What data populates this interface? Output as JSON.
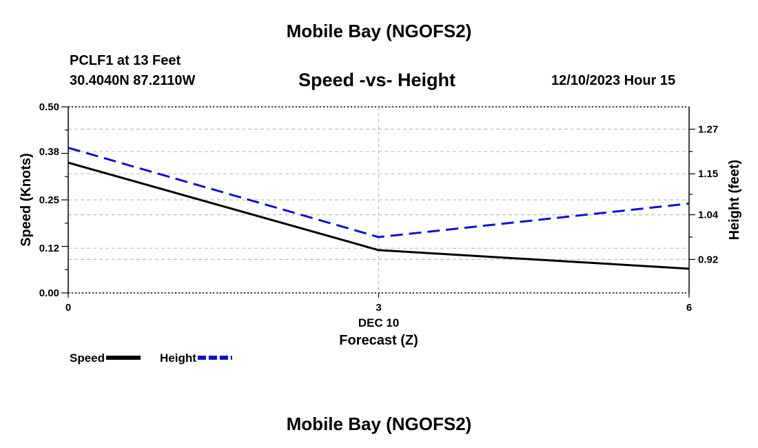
{
  "header": {
    "title": "Mobile Bay (NGOFS2)",
    "station": "PCLF1 at 13 Feet",
    "coords": "30.4040N  87.2110W",
    "subtitle": "Speed -vs- Height",
    "timestamp": "12/10/2023 Hour 15"
  },
  "footer": {
    "title": "Mobile Bay (NGOFS2)"
  },
  "chart_data": {
    "type": "line",
    "title": "Speed -vs- Height",
    "xlabel": "Forecast (Z)",
    "xdate_label": "DEC 10",
    "ylabel_left": "Speed (Knots)",
    "ylabel_right": "Height (feet)",
    "x": [
      0,
      3,
      6
    ],
    "x_ticks": [
      "0",
      "3",
      "6"
    ],
    "xlim": [
      0,
      6
    ],
    "ylim_left": [
      0.0,
      0.5
    ],
    "yticks_left": [
      "0.00",
      "0.12",
      "0.25",
      "0.38",
      "0.50"
    ],
    "ylim_right": [
      0.83,
      1.33
    ],
    "yticks_right": [
      "0.92",
      "1.04",
      "1.15",
      "1.27"
    ],
    "grid": true,
    "series": [
      {
        "name": "Speed",
        "axis": "left",
        "color": "#000000",
        "dash": "solid",
        "values": [
          0.35,
          0.115,
          0.065
        ]
      },
      {
        "name": "Height",
        "axis": "right",
        "color": "#1010d0",
        "dash": "dashed",
        "values": [
          1.22,
          0.98,
          1.07
        ]
      }
    ]
  }
}
